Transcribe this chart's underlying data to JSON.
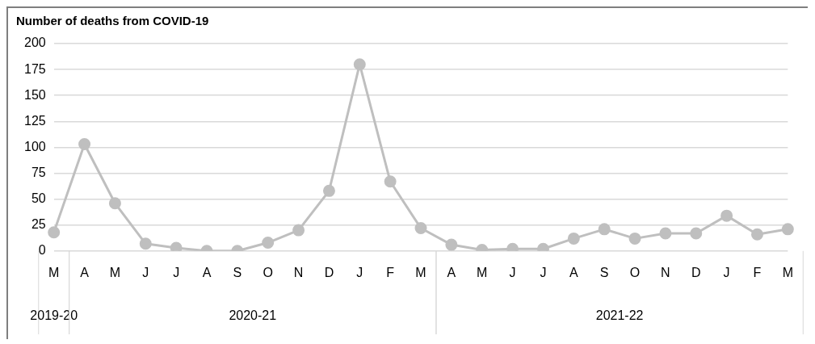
{
  "chart_data": {
    "type": "line",
    "title": "Number of deaths from COVID-19",
    "categories": [
      "M",
      "A",
      "M",
      "J",
      "J",
      "A",
      "S",
      "O",
      "N",
      "D",
      "J",
      "F",
      "M",
      "A",
      "M",
      "J",
      "J",
      "A",
      "S",
      "O",
      "N",
      "D",
      "J",
      "F",
      "M"
    ],
    "series": [
      {
        "color": "#bfbfbf",
        "values": [
          18,
          103,
          46,
          7,
          3,
          0,
          0,
          8,
          20,
          58,
          180,
          67,
          22,
          6,
          1,
          2,
          2,
          12,
          21,
          12,
          17,
          17,
          34,
          16,
          21
        ]
      }
    ],
    "annotations": [
      "2019-20",
      "2020-21",
      "2021-22"
    ],
    "ylim": [
      0,
      200
    ],
    "yticks": [
      0,
      25,
      50,
      75,
      100,
      125,
      150,
      175,
      200
    ],
    "grid": "y",
    "legend": false,
    "marker": "circle",
    "line_style": "solid"
  }
}
